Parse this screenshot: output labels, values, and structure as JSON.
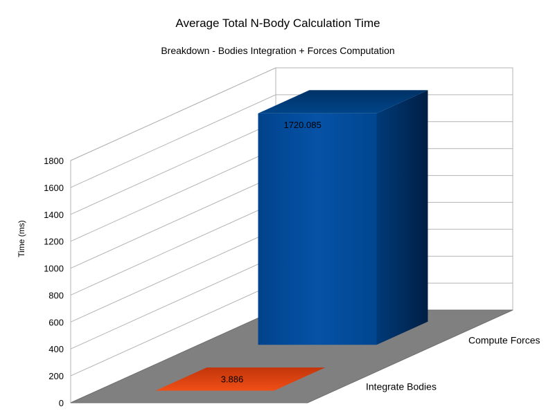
{
  "chart_data": {
    "type": "bar",
    "title": "Average Total N-Body Calculation Time",
    "subtitle": "Breakdown - Bodies Integration + Forces Computation",
    "xlabel": "",
    "ylabel": "Time (ms)",
    "ylim": [
      0,
      1800
    ],
    "yticks": [
      0,
      200,
      400,
      600,
      800,
      1000,
      1200,
      1400,
      1600,
      1800
    ],
    "categories": [
      "Integrate Bodies",
      "Compute Forces"
    ],
    "values": [
      3.886,
      1720.085
    ],
    "data_labels": [
      "3.886",
      "1720.085"
    ],
    "bar_colors": [
      "#e0400f",
      "#004d9a"
    ],
    "floor_color": "#808080",
    "grid": true,
    "legend": "none",
    "style": "3d"
  }
}
